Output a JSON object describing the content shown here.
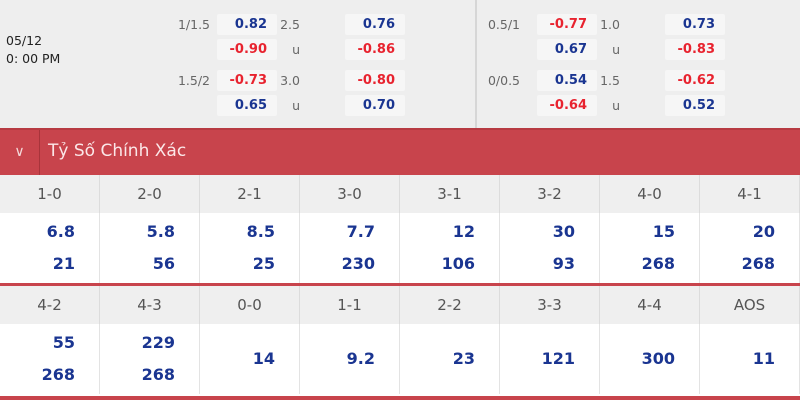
{
  "match": {
    "date": "05/12",
    "time": "0: 00 PM"
  },
  "odds_left": [
    {
      "hcap": "1/1.5",
      "hcap_home": "0.82",
      "hcap_away": "-0.90",
      "ou": "2.5",
      "ou_under_label": "u",
      "over": "0.76",
      "under": "-0.86"
    },
    {
      "hcap": "1.5/2",
      "hcap_home": "-0.73",
      "hcap_away": "0.65",
      "ou": "3.0",
      "ou_under_label": "u",
      "over": "-0.80",
      "under": "0.70"
    }
  ],
  "odds_right": [
    {
      "hcap": "0.5/1",
      "hcap_home": "-0.77",
      "hcap_away": "0.67",
      "ou": "1.0",
      "ou_under_label": "u",
      "over": "0.73",
      "under": "-0.83"
    },
    {
      "hcap": "0/0.5",
      "hcap_home": "0.54",
      "hcap_away": "-0.64",
      "ou": "1.5",
      "ou_under_label": "u",
      "over": "-0.62",
      "under": "0.52"
    }
  ],
  "section": {
    "title": "Tỷ Số Chính Xác",
    "icon": "chevron-down-icon"
  },
  "scores_row1": [
    {
      "score": "1-0",
      "a": "6.8",
      "b": "21"
    },
    {
      "score": "2-0",
      "a": "5.8",
      "b": "56"
    },
    {
      "score": "2-1",
      "a": "8.5",
      "b": "25"
    },
    {
      "score": "3-0",
      "a": "7.7",
      "b": "230"
    },
    {
      "score": "3-1",
      "a": "12",
      "b": "106"
    },
    {
      "score": "3-2",
      "a": "30",
      "b": "93"
    },
    {
      "score": "4-0",
      "a": "15",
      "b": "268"
    },
    {
      "score": "4-1",
      "a": "20",
      "b": "268"
    }
  ],
  "scores_row2": [
    {
      "score": "4-2",
      "a": "55",
      "b": "268"
    },
    {
      "score": "4-3",
      "a": "229",
      "b": "268"
    },
    {
      "score": "0-0",
      "a": "14"
    },
    {
      "score": "1-1",
      "a": "9.2"
    },
    {
      "score": "2-2",
      "a": "23"
    },
    {
      "score": "3-3",
      "a": "121"
    },
    {
      "score": "4-4",
      "a": "300"
    },
    {
      "score": "AOS",
      "a": "11"
    }
  ],
  "colors": {
    "accent": "#c8444c",
    "positive": "#1a3591",
    "negative": "#e8232f"
  }
}
